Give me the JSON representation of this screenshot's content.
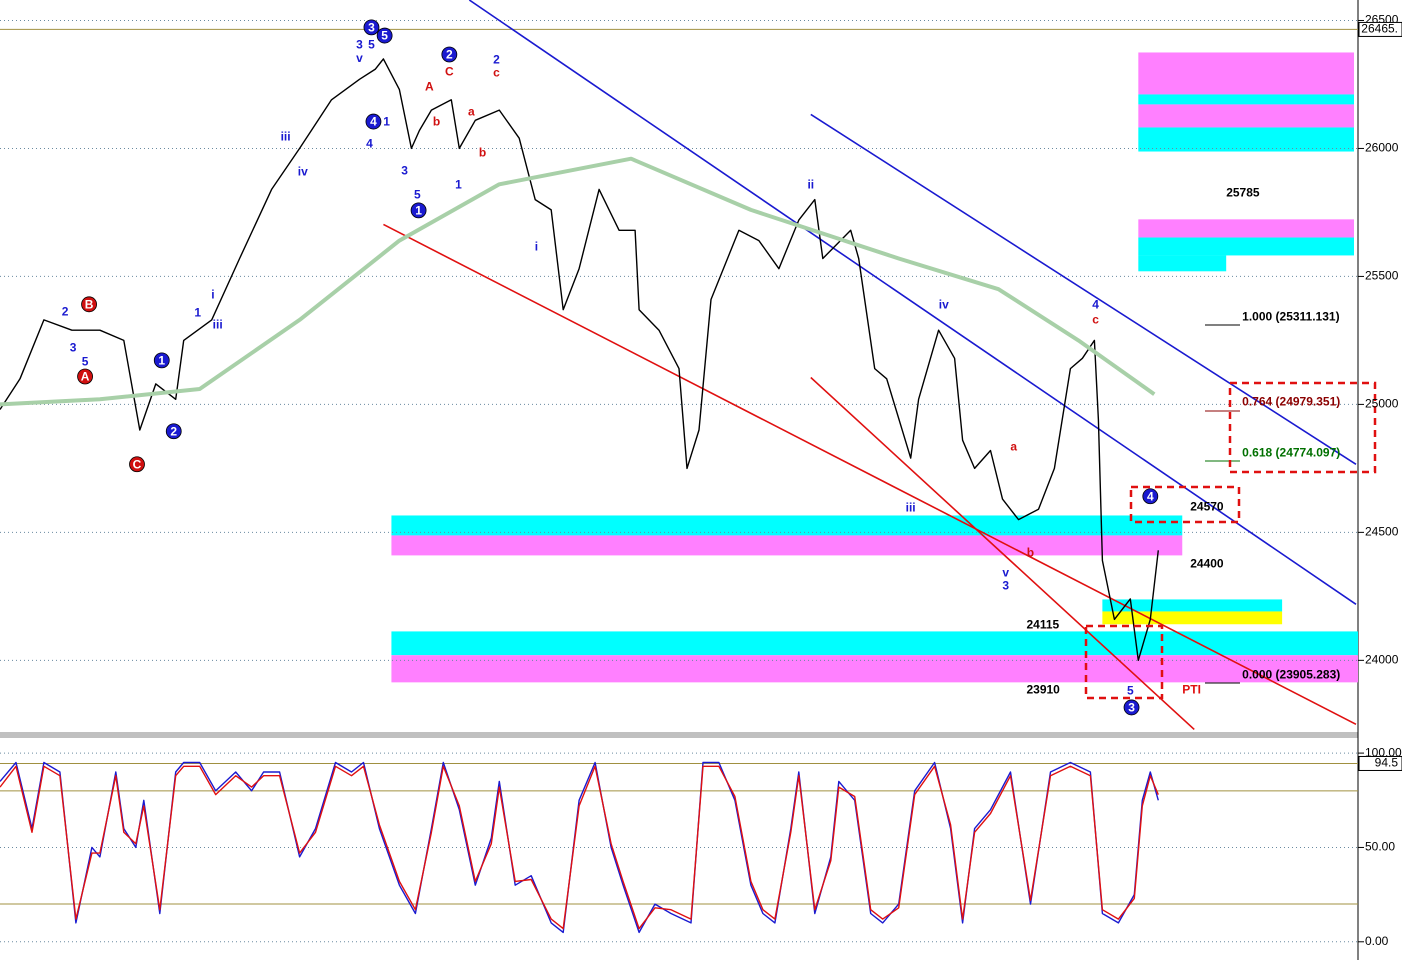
{
  "chart_data": [
    {
      "type": "line",
      "xlim": [
        0,
        340
      ],
      "ylim": [
        23720,
        26580
      ],
      "yticks": [
        24000,
        24500,
        25000,
        25500,
        26000,
        26500
      ],
      "grid": true,
      "last_price": {
        "value": 26465,
        "label": "26465."
      },
      "series": [
        {
          "color": "#000000",
          "x": [
            0,
            5,
            11,
            18,
            25,
            31,
            35,
            39,
            44,
            46,
            53,
            60,
            68,
            75,
            83,
            90,
            94,
            96,
            100,
            103,
            105,
            108,
            113,
            115,
            119,
            125,
            130,
            134,
            138,
            141,
            145,
            150,
            155,
            159,
            160,
            165,
            170,
            172,
            175,
            178,
            185,
            190,
            195,
            200,
            204,
            206,
            213,
            215,
            219,
            222,
            228,
            230,
            235,
            239,
            241,
            244,
            248,
            251,
            255,
            260,
            264,
            268,
            271,
            274,
            275,
            276,
            279,
            283,
            285,
            288,
            290
          ],
          "values": [
            24980,
            25100,
            25330,
            25290,
            25290,
            25250,
            24900,
            25080,
            25020,
            25250,
            25330,
            25570,
            25840,
            26000,
            26190,
            26270,
            26310,
            26350,
            26230,
            26000,
            26070,
            26150,
            26190,
            26000,
            26110,
            26150,
            26040,
            25800,
            25760,
            25370,
            25530,
            25840,
            25680,
            25680,
            25370,
            25290,
            25140,
            24750,
            24900,
            25410,
            25680,
            25640,
            25530,
            25720,
            25800,
            25570,
            25680,
            25570,
            25140,
            25100,
            24790,
            25020,
            25290,
            25180,
            24860,
            24750,
            24820,
            24630,
            24550,
            24590,
            24750,
            25140,
            25180,
            25250,
            24940,
            24390,
            24160,
            24240,
            24000,
            24160,
            24430
          ]
        },
        {
          "color": "#a8d0a8",
          "x": [
            0,
            25,
            50,
            75,
            100,
            125,
            158,
            188,
            225,
            250,
            270,
            289
          ],
          "values": [
            25000,
            25020,
            25060,
            25330,
            25640,
            25860,
            25960,
            25760,
            25570,
            25450,
            25250,
            25040
          ]
        }
      ],
      "lines": [
        {
          "color": "#1a1ad0",
          "x": [
            117.5,
            339.5
          ],
          "y": [
            26580,
            24219
          ]
        },
        {
          "color": "#1a1ad0",
          "x": [
            203,
            339.5
          ],
          "y": [
            26133,
            24766
          ]
        },
        {
          "color": "#e01010",
          "x": [
            96,
            339.5
          ],
          "y": [
            25703,
            23750
          ]
        },
        {
          "color": "#e01010",
          "x": [
            203,
            299
          ],
          "y": [
            25105,
            23730
          ]
        }
      ],
      "zones": [
        {
          "color": "#00ffff",
          "x": [
            98,
            296
          ],
          "y": [
            24566,
            24488
          ]
        },
        {
          "color": "#ff80ff",
          "x": [
            98,
            296
          ],
          "y": [
            24488,
            24410
          ]
        },
        {
          "color": "#00ffff",
          "x": [
            98,
            340
          ],
          "y": [
            24113,
            24020
          ]
        },
        {
          "color": "#ff80ff",
          "x": [
            98,
            340
          ],
          "y": [
            24020,
            23914
          ]
        },
        {
          "color": "#ff80ff",
          "x": [
            285,
            339
          ],
          "y": [
            26375,
            26211
          ]
        },
        {
          "color": "#00ffff",
          "x": [
            285,
            339
          ],
          "y": [
            26211,
            26172
          ]
        },
        {
          "color": "#ff80ff",
          "x": [
            285,
            339
          ],
          "y": [
            26172,
            26082
          ]
        },
        {
          "color": "#00ffff",
          "x": [
            285,
            339
          ],
          "y": [
            26082,
            25988
          ]
        },
        {
          "color": "#ff80ff",
          "x": [
            285,
            339
          ],
          "y": [
            25723,
            25652
          ]
        },
        {
          "color": "#00ffff",
          "x": [
            285,
            339
          ],
          "y": [
            25652,
            25582
          ]
        },
        {
          "color": "#00ffff",
          "x": [
            285,
            307
          ],
          "y": [
            25582,
            25520
          ]
        },
        {
          "color": "#00ffff",
          "x": [
            276,
            321
          ],
          "y": [
            24238,
            24191
          ]
        },
        {
          "color": "#ffff00",
          "x": [
            276,
            321
          ],
          "y": [
            24191,
            24141
          ]
        }
      ],
      "labels": [
        {
          "text": "25785",
          "x": 307,
          "y": 25824,
          "color": "#000000"
        },
        {
          "text": "1.000 (25311.131)",
          "x": 311,
          "y": 25340,
          "color": "#000000"
        },
        {
          "text": "0.764 (24979.351)",
          "x": 311,
          "y": 25008,
          "color": "#8b0000"
        },
        {
          "text": "0.618 (24774.097)",
          "x": 311,
          "y": 24809,
          "color": "#007000"
        },
        {
          "text": "24570",
          "x": 298,
          "y": 24598,
          "color": "#000000"
        },
        {
          "text": "24400",
          "x": 298,
          "y": 24375,
          "color": "#000000"
        },
        {
          "text": "24115",
          "x": 257,
          "y": 24137,
          "color": "#000000"
        },
        {
          "text": "23910",
          "x": 257,
          "y": 23883,
          "color": "#000000"
        },
        {
          "text": "0.000 (23905.283)",
          "x": 311,
          "y": 23941,
          "color": "#000000"
        },
        {
          "text": "PTI",
          "x": 296,
          "y": 23883,
          "color": "#e01010"
        }
      ],
      "annotations": [
        {
          "text": "3",
          "x": 90,
          "y": 26406,
          "color": "#1a1ad0"
        },
        {
          "text": "v",
          "x": 90,
          "y": 26355,
          "color": "#1a1ad0"
        },
        {
          "text": "3",
          "x": 93,
          "y": 26473,
          "color": "#1a1ad0",
          "circled": true
        },
        {
          "text": "5",
          "x": 96.3,
          "y": 26441,
          "color": "#1a1ad0",
          "circled": true
        },
        {
          "text": "5",
          "x": 93,
          "y": 26406,
          "color": "#1a1ad0"
        },
        {
          "text": "2",
          "x": 112.5,
          "y": 26367,
          "color": "#1a1ad0",
          "circled": true
        },
        {
          "text": "C",
          "x": 112.5,
          "y": 26301,
          "color": "#d01010"
        },
        {
          "text": "2",
          "x": 124.3,
          "y": 26348,
          "color": "#1a1ad0"
        },
        {
          "text": "c",
          "x": 124.3,
          "y": 26297,
          "color": "#d01010"
        },
        {
          "text": "A",
          "x": 107.5,
          "y": 26242,
          "color": "#d01010"
        },
        {
          "text": "a",
          "x": 118,
          "y": 26145,
          "color": "#d01010"
        },
        {
          "text": "b",
          "x": 109.3,
          "y": 26105,
          "color": "#d01010"
        },
        {
          "text": "b",
          "x": 120.8,
          "y": 25984,
          "color": "#d01010"
        },
        {
          "text": "4",
          "x": 93.5,
          "y": 26105,
          "color": "#1a1ad0",
          "circled": true
        },
        {
          "text": "1",
          "x": 96.8,
          "y": 26105,
          "color": "#1a1ad0"
        },
        {
          "text": "4",
          "x": 92.5,
          "y": 26020,
          "color": "#1a1ad0"
        },
        {
          "text": "3",
          "x": 101.3,
          "y": 25914,
          "color": "#1a1ad0"
        },
        {
          "text": "5",
          "x": 104.5,
          "y": 25820,
          "color": "#1a1ad0"
        },
        {
          "text": "1",
          "x": 104.8,
          "y": 25758,
          "color": "#1a1ad0",
          "circled": true
        },
        {
          "text": "1",
          "x": 114.8,
          "y": 25859,
          "color": "#1a1ad0"
        },
        {
          "text": "iii",
          "x": 71.5,
          "y": 26047,
          "color": "#1a1ad0"
        },
        {
          "text": "iv",
          "x": 75.8,
          "y": 25910,
          "color": "#1a1ad0"
        },
        {
          "text": "i",
          "x": 134.3,
          "y": 25617,
          "color": "#1a1ad0"
        },
        {
          "text": "ii",
          "x": 203,
          "y": 25859,
          "color": "#1a1ad0"
        },
        {
          "text": "iv",
          "x": 236.3,
          "y": 25391,
          "color": "#1a1ad0"
        },
        {
          "text": "iii",
          "x": 228,
          "y": 24598,
          "color": "#1a1ad0"
        },
        {
          "text": "v",
          "x": 251.8,
          "y": 24344,
          "color": "#1a1ad0"
        },
        {
          "text": "3",
          "x": 251.8,
          "y": 24293,
          "color": "#1a1ad0"
        },
        {
          "text": "a",
          "x": 253.8,
          "y": 24836,
          "color": "#d01010"
        },
        {
          "text": "b",
          "x": 258,
          "y": 24422,
          "color": "#d01010"
        },
        {
          "text": "4",
          "x": 274.3,
          "y": 25391,
          "color": "#1a1ad0"
        },
        {
          "text": "c",
          "x": 274.3,
          "y": 25332,
          "color": "#d01010"
        },
        {
          "text": "4",
          "x": 288,
          "y": 24641,
          "color": "#1a1ad0",
          "circled": true
        },
        {
          "text": "5",
          "x": 283,
          "y": 23883,
          "color": "#1a1ad0"
        },
        {
          "text": "3",
          "x": 283.3,
          "y": 23816,
          "color": "#1a1ad0",
          "circled": true
        },
        {
          "text": "2",
          "x": 16.3,
          "y": 25363,
          "color": "#1a1ad0"
        },
        {
          "text": "B",
          "x": 22.3,
          "y": 25391,
          "color": "#d01010",
          "circled": true
        },
        {
          "text": "3",
          "x": 18.3,
          "y": 25223,
          "color": "#1a1ad0"
        },
        {
          "text": "5",
          "x": 21.3,
          "y": 25168,
          "color": "#1a1ad0"
        },
        {
          "text": "A",
          "x": 21.3,
          "y": 25109,
          "color": "#d01010",
          "circled": true
        },
        {
          "text": "1",
          "x": 40.5,
          "y": 25172,
          "color": "#1a1ad0",
          "circled": true
        },
        {
          "text": "2",
          "x": 43.5,
          "y": 24895,
          "color": "#1a1ad0",
          "circled": true
        },
        {
          "text": "C",
          "x": 34.3,
          "y": 24766,
          "color": "#d01010",
          "circled": true
        },
        {
          "text": "1",
          "x": 49.5,
          "y": 25359,
          "color": "#1a1ad0"
        },
        {
          "text": "i",
          "x": 53.3,
          "y": 25430,
          "color": "#1a1ad0"
        },
        {
          "text": "iii",
          "x": 54.5,
          "y": 25312,
          "color": "#1a1ad0"
        }
      ]
    },
    {
      "type": "line",
      "xlim": [
        0,
        340
      ],
      "ylim": [
        -7,
        108
      ],
      "yticks": [
        {
          "value": 100,
          "label": "100.00"
        },
        {
          "value": 50,
          "label": "50.00"
        },
        {
          "value": 0,
          "label": "0.00"
        }
      ],
      "grid": true,
      "last_price": {
        "value": 94.5,
        "label": "94.5"
      },
      "hlines": [
        80,
        20
      ],
      "series": [
        {
          "color": "#1a1ad0",
          "x": [
            0,
            4,
            8,
            11,
            15,
            19,
            23,
            25,
            29,
            31,
            34,
            36,
            40,
            44,
            46,
            50,
            54,
            59,
            63,
            66,
            70,
            75,
            79,
            84,
            88,
            91,
            95,
            100,
            104,
            108,
            111,
            115,
            119,
            123,
            125,
            129,
            133,
            138,
            141,
            145,
            149,
            153,
            156,
            160,
            164,
            168,
            173,
            176,
            180,
            184,
            188,
            191,
            194,
            198,
            200,
            204,
            208,
            210,
            214,
            218,
            221,
            225,
            229,
            234,
            238,
            241,
            244,
            248,
            253,
            258,
            263,
            268,
            273,
            276,
            280,
            284,
            286,
            288,
            290
          ],
          "values": [
            85,
            95,
            60,
            95,
            90,
            10,
            50,
            45,
            90,
            60,
            50,
            75,
            15,
            90,
            95,
            95,
            80,
            90,
            80,
            90,
            90,
            45,
            60,
            95,
            90,
            95,
            60,
            30,
            15,
            60,
            95,
            70,
            30,
            55,
            85,
            30,
            35,
            10,
            5,
            75,
            95,
            50,
            30,
            5,
            20,
            15,
            10,
            95,
            95,
            75,
            30,
            15,
            10,
            60,
            90,
            15,
            45,
            85,
            75,
            15,
            10,
            20,
            80,
            95,
            60,
            10,
            60,
            70,
            90,
            20,
            90,
            95,
            90,
            15,
            10,
            25,
            75,
            90,
            75
          ]
        },
        {
          "color": "#e01010",
          "x": [
            0,
            4,
            8,
            11,
            15,
            19,
            23,
            25,
            29,
            31,
            34,
            36,
            40,
            44,
            46,
            50,
            54,
            59,
            63,
            66,
            70,
            75,
            79,
            84,
            88,
            91,
            95,
            100,
            104,
            108,
            111,
            115,
            119,
            123,
            125,
            129,
            133,
            138,
            141,
            145,
            149,
            153,
            156,
            160,
            164,
            168,
            173,
            176,
            180,
            184,
            188,
            191,
            194,
            198,
            200,
            204,
            208,
            210,
            214,
            218,
            221,
            225,
            229,
            234,
            238,
            241,
            244,
            248,
            253,
            258,
            263,
            268,
            273,
            276,
            280,
            284,
            286,
            288,
            290
          ],
          "values": [
            82,
            93,
            58,
            93,
            88,
            12,
            47,
            47,
            88,
            58,
            52,
            72,
            17,
            88,
            93,
            93,
            78,
            88,
            82,
            88,
            88,
            47,
            58,
            93,
            88,
            93,
            62,
            32,
            17,
            58,
            93,
            72,
            32,
            52,
            82,
            32,
            33,
            12,
            7,
            72,
            93,
            52,
            32,
            7,
            18,
            17,
            12,
            93,
            93,
            77,
            32,
            17,
            12,
            58,
            88,
            17,
            43,
            82,
            77,
            17,
            12,
            18,
            78,
            93,
            62,
            12,
            58,
            68,
            88,
            22,
            88,
            93,
            88,
            17,
            12,
            23,
            72,
            88,
            78
          ]
        }
      ]
    }
  ]
}
